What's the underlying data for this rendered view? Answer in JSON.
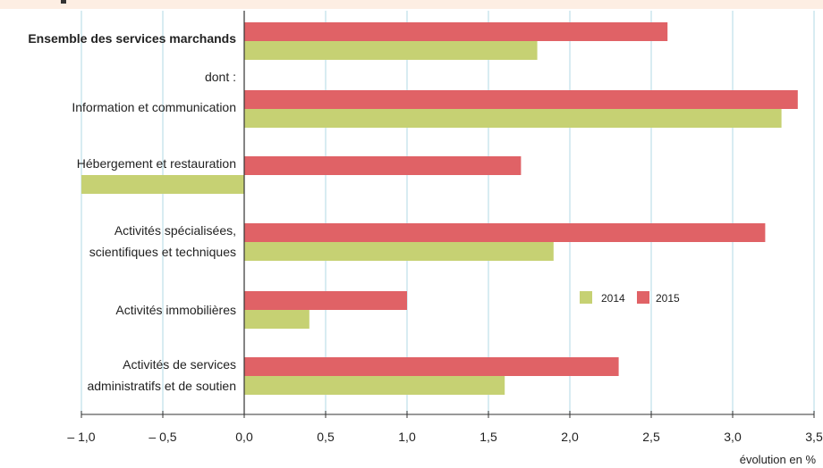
{
  "chart_data": {
    "type": "bar",
    "orientation": "horizontal",
    "xlabel": "évolution en %",
    "xlim": [
      -1.0,
      3.5
    ],
    "x_ticks": [
      -1.0,
      -0.5,
      0.0,
      0.5,
      1.0,
      1.5,
      2.0,
      2.5,
      3.0,
      3.5
    ],
    "x_tick_labels": [
      "– 1,0",
      "– 0,5",
      "0,0",
      "0,5",
      "1,0",
      "1,5",
      "2,0",
      "2,5",
      "3,0",
      "3,5"
    ],
    "grid": true,
    "legend_position": "right-middle",
    "sub_label": "dont :",
    "categories": [
      {
        "lines": [
          "Ensemble des services marchands"
        ],
        "bold": true
      },
      {
        "lines": [
          "Information et communication"
        ],
        "bold": false
      },
      {
        "lines": [
          "Hébergement et restauration"
        ],
        "bold": false
      },
      {
        "lines": [
          "Activités spécialisées,",
          "scientifiques et techniques"
        ],
        "bold": false
      },
      {
        "lines": [
          "Activités immobilières"
        ],
        "bold": false
      },
      {
        "lines": [
          "Activités de services",
          "administratifs et de soutien"
        ],
        "bold": false
      }
    ],
    "series": [
      {
        "name": "2015",
        "color": "#e06266",
        "values": [
          2.6,
          3.4,
          1.7,
          3.2,
          1.0,
          2.3
        ]
      },
      {
        "name": "2014",
        "color": "#c6d173",
        "values": [
          1.8,
          3.3,
          -1.0,
          1.9,
          0.4,
          1.6
        ]
      }
    ],
    "legend_order": [
      "2014",
      "2015"
    ]
  }
}
